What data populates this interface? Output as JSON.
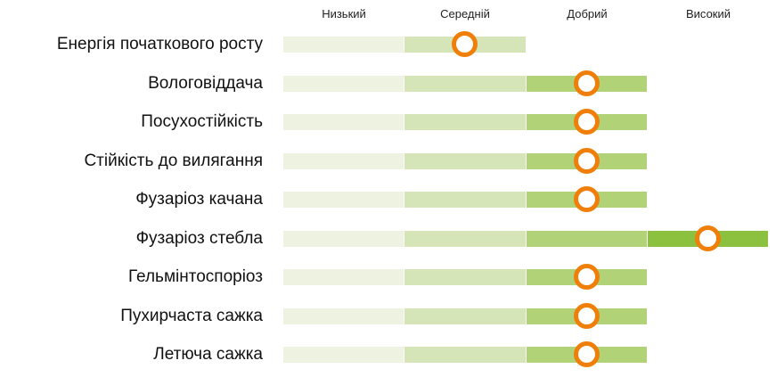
{
  "chart_data": {
    "type": "rating-scale",
    "levels": [
      "Низький",
      "Середній",
      "Добрий",
      "Високий"
    ],
    "rows": [
      {
        "label": "Енергія початкового росту",
        "value": 1.5
      },
      {
        "label": "Вологовіддача",
        "value": 2.5
      },
      {
        "label": "Посухостійкість",
        "value": 2.5
      },
      {
        "label": "Стійкість до вилягання",
        "value": 2.5
      },
      {
        "label": "Фузаріоз качана",
        "value": 2.5
      },
      {
        "label": "Фузаріоз стебла",
        "value": 3.5
      },
      {
        "label": "Гельмінтоспоріоз",
        "value": 2.5
      },
      {
        "label": "Пухирчаста сажка",
        "value": 2.5
      },
      {
        "label": "Летюча сажка",
        "value": 2.5
      }
    ]
  },
  "colors": {
    "level_fills": [
      "#edf3e0",
      "#d5e5b8",
      "#b2d278",
      "#8cc140"
    ],
    "marker": "#f07f0a"
  }
}
